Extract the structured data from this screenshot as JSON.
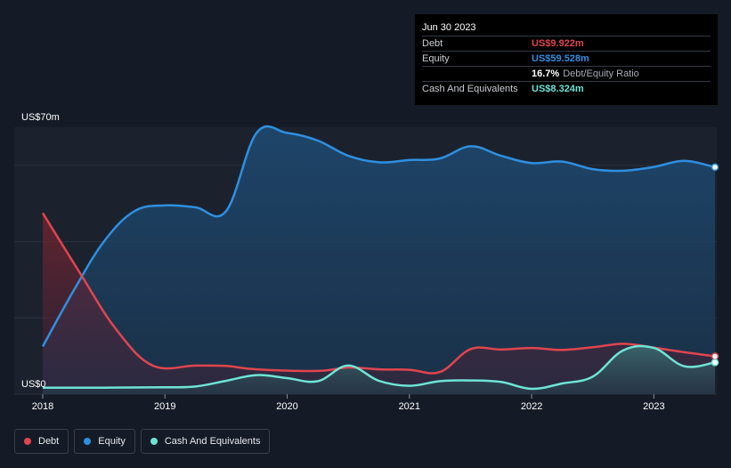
{
  "chart_data": {
    "type": "area",
    "y_top_label": "US$70m",
    "y_bottom_label": "US$0",
    "ylim": [
      0,
      70
    ],
    "x_ticks": [
      "2018",
      "2019",
      "2020",
      "2021",
      "2022",
      "2023"
    ],
    "xlim": [
      2018.0,
      2023.5
    ],
    "series": [
      {
        "name": "Debt",
        "color": "#e0454f",
        "points": [
          [
            2018.0,
            47.5
          ],
          [
            2018.3,
            32
          ],
          [
            2018.6,
            17
          ],
          [
            2018.9,
            7.5
          ],
          [
            2019.25,
            7.5
          ],
          [
            2019.5,
            7.4
          ],
          [
            2019.75,
            6.5
          ],
          [
            2020.25,
            6.1
          ],
          [
            2020.5,
            7
          ],
          [
            2020.75,
            6.5
          ],
          [
            2021.0,
            6.4
          ],
          [
            2021.25,
            5.8
          ],
          [
            2021.5,
            11.8
          ],
          [
            2021.75,
            11.7
          ],
          [
            2022.0,
            12.1
          ],
          [
            2022.25,
            11.6
          ],
          [
            2022.5,
            12.3
          ],
          [
            2022.75,
            13.2
          ],
          [
            2023.0,
            12.2
          ],
          [
            2023.25,
            11
          ],
          [
            2023.5,
            9.922
          ]
        ]
      },
      {
        "name": "Equity",
        "color": "#2f8fe0",
        "points": [
          [
            2018.0,
            12.5
          ],
          [
            2018.25,
            27
          ],
          [
            2018.5,
            40
          ],
          [
            2018.75,
            48
          ],
          [
            2019.0,
            49.5
          ],
          [
            2019.25,
            49
          ],
          [
            2019.5,
            48
          ],
          [
            2019.75,
            68.5
          ],
          [
            2020.0,
            68.5
          ],
          [
            2020.25,
            66.5
          ],
          [
            2020.5,
            62.5
          ],
          [
            2020.75,
            60.8
          ],
          [
            2021.0,
            61.4
          ],
          [
            2021.25,
            61.8
          ],
          [
            2021.5,
            65
          ],
          [
            2021.75,
            62.5
          ],
          [
            2022.0,
            60.6
          ],
          [
            2022.25,
            61
          ],
          [
            2022.5,
            59
          ],
          [
            2022.75,
            58.6
          ],
          [
            2023.0,
            59.6
          ],
          [
            2023.25,
            61.2
          ],
          [
            2023.5,
            59.528
          ]
        ]
      },
      {
        "name": "Cash And Equivalents",
        "color": "#6ee4d6",
        "points": [
          [
            2018.0,
            1.7
          ],
          [
            2018.5,
            1.7
          ],
          [
            2019.0,
            1.8
          ],
          [
            2019.25,
            2
          ],
          [
            2019.5,
            3.5
          ],
          [
            2019.75,
            5
          ],
          [
            2020.0,
            4.2
          ],
          [
            2020.25,
            3.4
          ],
          [
            2020.5,
            7.5
          ],
          [
            2020.75,
            3.5
          ],
          [
            2021.0,
            2.2
          ],
          [
            2021.25,
            3.4
          ],
          [
            2021.5,
            3.6
          ],
          [
            2021.75,
            3.2
          ],
          [
            2022.0,
            1.4
          ],
          [
            2022.25,
            2.8
          ],
          [
            2022.5,
            4.6
          ],
          [
            2022.75,
            11.5
          ],
          [
            2023.0,
            12.1
          ],
          [
            2023.25,
            7.3
          ],
          [
            2023.5,
            8.324
          ]
        ]
      }
    ]
  },
  "tooltip": {
    "date": "Jun 30 2023",
    "rows": [
      {
        "label": "Debt",
        "value": "US$9.922m",
        "color": "#e0454f"
      },
      {
        "label": "Equity",
        "value": "US$59.528m",
        "color": "#2f8fe0"
      },
      {
        "ratio_value": "16.7%",
        "ratio_label": "Debt/Equity Ratio"
      },
      {
        "label": "Cash And Equivalents",
        "value": "US$8.324m",
        "color": "#6ee4d6"
      }
    ]
  },
  "legend": [
    {
      "label": "Debt",
      "color": "#e0454f"
    },
    {
      "label": "Equity",
      "color": "#2f8fe0"
    },
    {
      "label": "Cash And Equivalents",
      "color": "#6ee4d6"
    }
  ]
}
